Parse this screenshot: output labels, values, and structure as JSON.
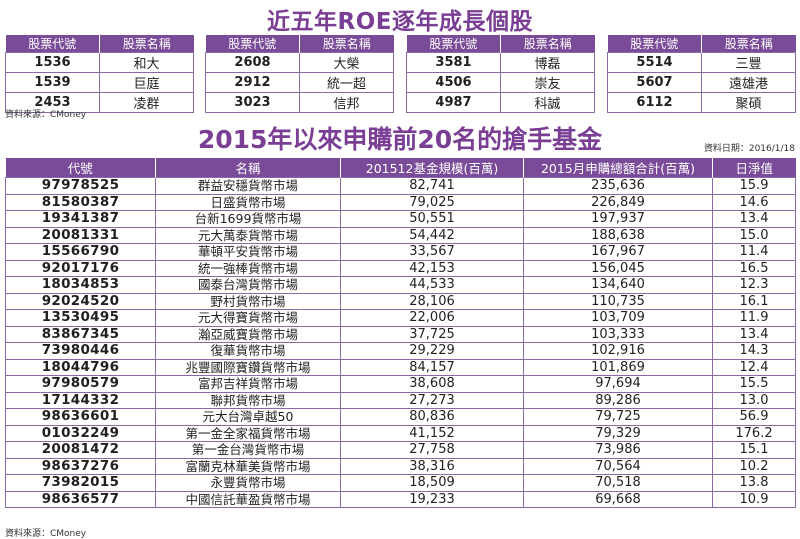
{
  "title_top": "近五年ROE逐年成長個股",
  "top_headers": [
    "股票代號",
    "股票名稱"
  ],
  "top_tables": [
    [
      [
        "1536",
        "和大"
      ],
      [
        "1539",
        "巨庭"
      ],
      [
        "2453",
        "凌群"
      ]
    ],
    [
      [
        "2608",
        "大榮"
      ],
      [
        "2912",
        "統一超"
      ],
      [
        "3023",
        "信邦"
      ]
    ],
    [
      [
        "3581",
        "博磊"
      ],
      [
        "4506",
        "崇友"
      ],
      [
        "4987",
        "科誠"
      ]
    ],
    [
      [
        "5514",
        "三豐"
      ],
      [
        "5607",
        "遠雄港"
      ],
      [
        "6112",
        "聚碩"
      ]
    ]
  ],
  "source_top": "資料來源：CMoney",
  "title_main": "2015年以來申購前20名的搶手基金",
  "date": "資料日期：2016/1/18",
  "main_headers": [
    "代號",
    "名稱",
    "201512基金規模(百萬)",
    "2015月申購總額合計(百萬)",
    "日淨值"
  ],
  "rows": [
    [
      "97978525",
      "群益安穩貨幣市場",
      "82,741",
      "235,636",
      "15.9"
    ],
    [
      "81580387",
      "日盛貨幣市場",
      "79,025",
      "226,849",
      "14.6"
    ],
    [
      "19341387",
      "台新1699貨幣市場",
      "50,551",
      "197,937",
      "13.4"
    ],
    [
      "20081331",
      "元大萬泰貨幣市場",
      "54,442",
      "188,638",
      "15.0"
    ],
    [
      "15566790",
      "華頓平安貨幣市場",
      "33,567",
      "167,967",
      "11.4"
    ],
    [
      "92017176",
      "統一強棒貨幣市場",
      "42,153",
      "156,045",
      "16.5"
    ],
    [
      "18034853",
      "國泰台灣貨幣市場",
      "44,533",
      "134,640",
      "12.3"
    ],
    [
      "92024520",
      "野村貨幣市場",
      "28,106",
      "110,735",
      "16.1"
    ],
    [
      "13530495",
      "元大得寶貨幣市場",
      "22,006",
      "103,709",
      "11.9"
    ],
    [
      "83867345",
      "瀚亞威寶貨幣市場",
      "37,725",
      "103,333",
      "13.4"
    ],
    [
      "73980446",
      "復華貨幣市場",
      "29,229",
      "102,916",
      "14.3"
    ],
    [
      "18044796",
      "兆豐國際寶鑽貨幣市場",
      "84,157",
      "101,869",
      "12.4"
    ],
    [
      "97980579",
      "富邦吉祥貨幣市場",
      "38,608",
      "97,694",
      "15.5"
    ],
    [
      "17144332",
      "聯邦貨幣市場",
      "27,273",
      "89,286",
      "13.0"
    ],
    [
      "98636601",
      "元大台灣卓越50",
      "80,836",
      "79,725",
      "56.9"
    ],
    [
      "01032249",
      "第一金全家福貨幣市場",
      "41,152",
      "79,329",
      "176.2"
    ],
    [
      "20081472",
      "第一金台灣貨幣市場",
      "27,758",
      "73,986",
      "15.1"
    ],
    [
      "98637276",
      "富蘭克林華美貨幣市場",
      "38,316",
      "70,564",
      "10.2"
    ],
    [
      "73982015",
      "永豐貨幣市場",
      "18,509",
      "70,518",
      "13.8"
    ],
    [
      "98636577",
      "中國信託華盈貨幣市場",
      "19,233",
      "69,668",
      "10.9"
    ]
  ],
  "source_bottom": "資料來源：CMoney"
}
